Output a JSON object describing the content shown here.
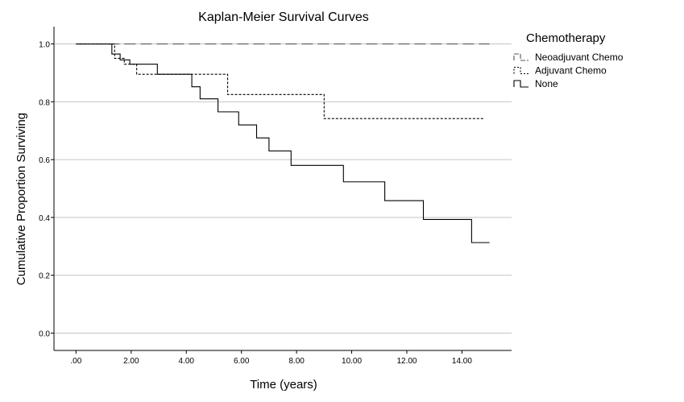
{
  "chart_data": {
    "type": "line",
    "step": true,
    "title": "Kaplan-Meier Survival Curves",
    "xlabel": "Time (years)",
    "ylabel": "Cumulative Proportion Surviving",
    "xlim": [
      -0.8,
      15.8
    ],
    "ylim": [
      -0.06,
      1.06
    ],
    "x_ticks": [
      0,
      2,
      4,
      6,
      8,
      10,
      12,
      14
    ],
    "x_tick_labels": [
      ".00",
      "2.00",
      "4.00",
      "6.00",
      "8.00",
      "10.00",
      "12.00",
      "14.00"
    ],
    "y_ticks": [
      0,
      0.2,
      0.4,
      0.6,
      0.8,
      1.0
    ],
    "y_tick_labels": [
      "0.0",
      "0.2",
      "0.4",
      "0.6",
      "0.8",
      "1.0"
    ],
    "grid": "horizontal",
    "legend": {
      "title": "Chemotherapy",
      "placement": "right"
    },
    "series": [
      {
        "name": "Neoadjuvant Chemo",
        "style": "long-dash",
        "color": "#555555",
        "x": [
          0,
          15.0
        ],
        "y": [
          1.0,
          1.0
        ]
      },
      {
        "name": "Adjuvant Chemo",
        "style": "dotted",
        "color": "#000000",
        "x": [
          0,
          1.4,
          1.75,
          2.2,
          5.5,
          9.0,
          14.8
        ],
        "y": [
          1.0,
          0.95,
          0.93,
          0.895,
          0.825,
          0.742,
          0.742
        ]
      },
      {
        "name": "None",
        "style": "solid",
        "color": "#000000",
        "x": [
          0,
          1.3,
          1.6,
          1.95,
          2.95,
          4.2,
          4.5,
          5.15,
          5.9,
          6.55,
          7.0,
          7.8,
          9.7,
          11.2,
          12.6,
          14.35,
          15.0
        ],
        "y": [
          1.0,
          0.965,
          0.945,
          0.93,
          0.895,
          0.852,
          0.81,
          0.765,
          0.72,
          0.675,
          0.63,
          0.58,
          0.523,
          0.458,
          0.393,
          0.313,
          0.313
        ]
      }
    ]
  }
}
